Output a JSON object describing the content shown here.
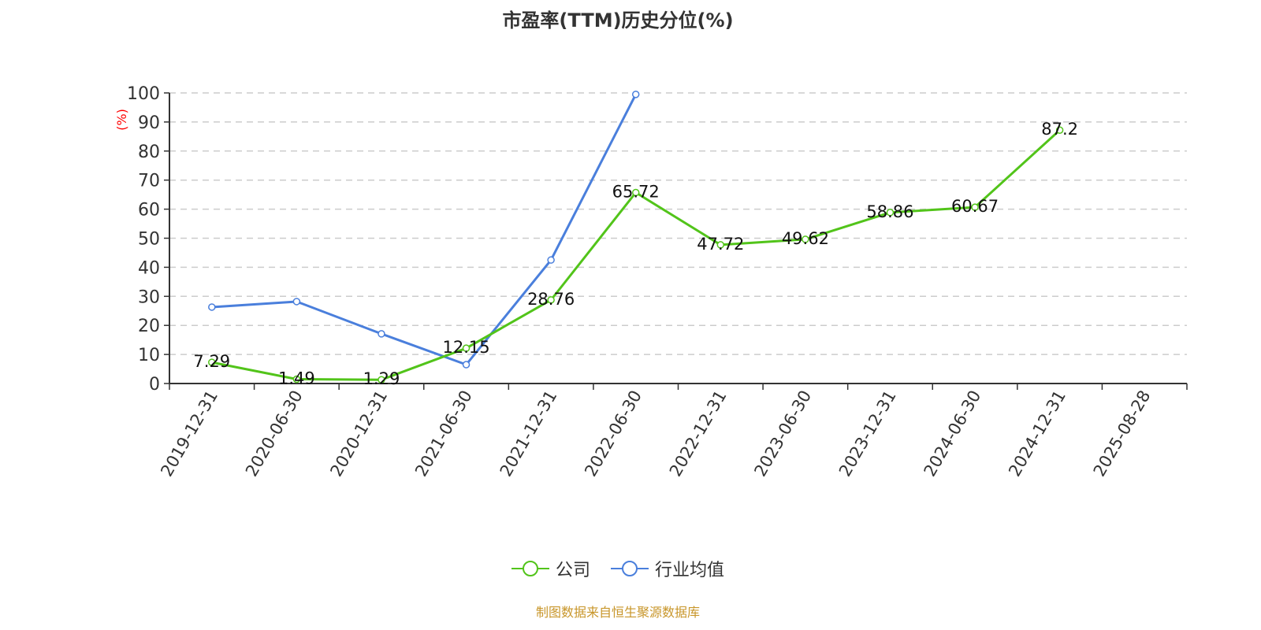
{
  "title": "市盈率(TTM)历史分位(%)",
  "source": "制图数据来自恒生聚源数据库",
  "colors": {
    "company": "#52c41a",
    "industry": "#4a7fdc",
    "unit_label": "#ff0000",
    "source": "#c8962a"
  },
  "legend": [
    {
      "label": "公司",
      "color": "#52c41a"
    },
    {
      "label": "行业均值",
      "color": "#4a7fdc"
    }
  ],
  "chart_data": {
    "type": "line",
    "title": "市盈率(TTM)历史分位(%)",
    "xlabel": "",
    "ylabel": "(%)",
    "ylim": [
      0,
      100
    ],
    "yticks": [
      0,
      10,
      20,
      30,
      40,
      50,
      60,
      70,
      80,
      90,
      100
    ],
    "grid": true,
    "legend_position": "bottom",
    "categories": [
      "2019-12-31",
      "2020-06-30",
      "2020-12-31",
      "2021-06-30",
      "2021-12-31",
      "2022-06-30",
      "2022-12-31",
      "2023-06-30",
      "2023-12-31",
      "2024-06-30",
      "2024-12-31",
      "2025-08-28"
    ],
    "series": [
      {
        "name": "公司",
        "values": [
          7.29,
          1.49,
          1.29,
          12.15,
          28.76,
          65.72,
          47.72,
          49.62,
          58.86,
          60.67,
          87.2,
          null
        ],
        "labels_shown": true
      },
      {
        "name": "行业均值",
        "values": [
          26.3,
          28.2,
          17.1,
          6.5,
          42.5,
          99.5,
          null,
          null,
          null,
          null,
          null,
          null
        ],
        "labels_shown": false
      }
    ]
  }
}
